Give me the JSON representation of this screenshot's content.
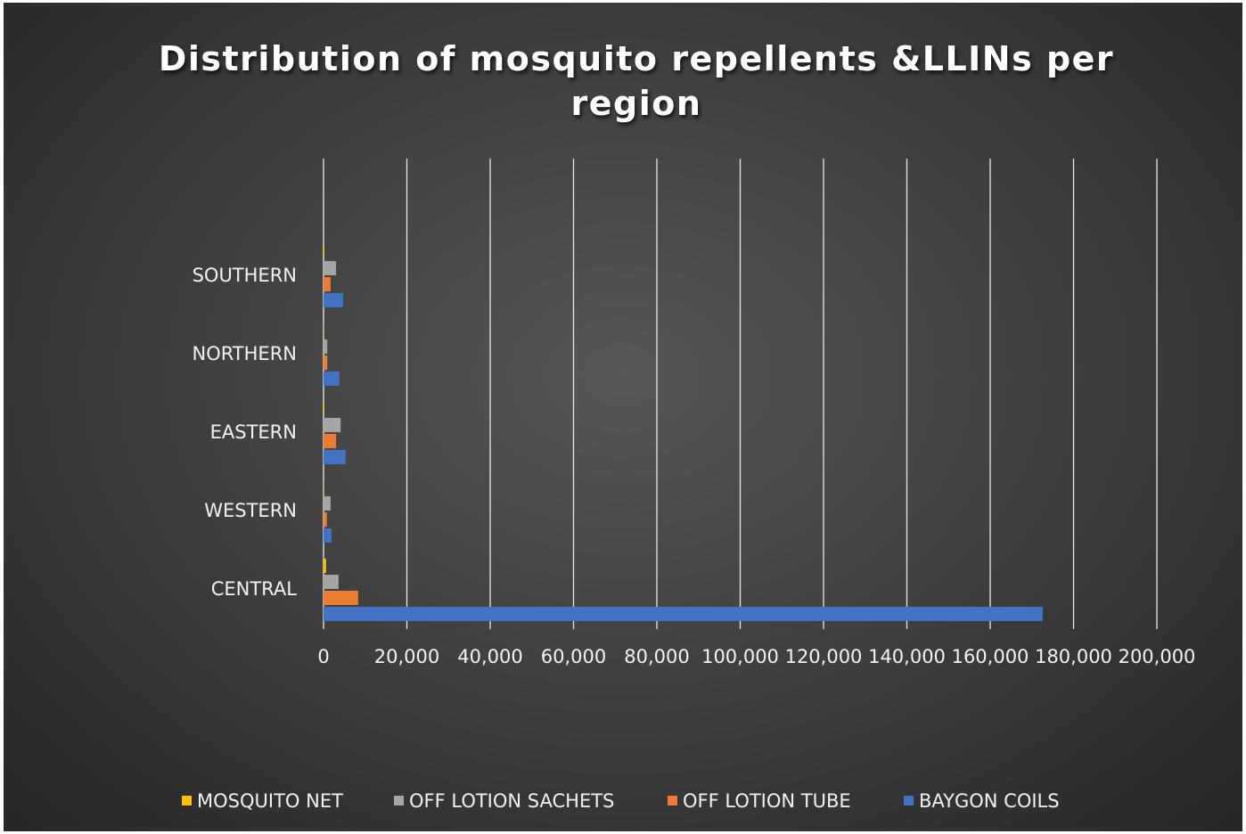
{
  "chart_data": {
    "type": "hbar",
    "title": "Distribution of mosquito repellents &LLINs per region",
    "categories": [
      "CENTRAL",
      "WESTERN",
      "EASTERN",
      "NORTHERN",
      "SOUTHERN",
      null
    ],
    "series": [
      {
        "name": "MOSQUITO NET",
        "color": "#ffc000",
        "values": [
          600,
          100,
          200,
          100,
          200,
          null
        ]
      },
      {
        "name": "OFF LOTION SACHETS",
        "color": "#a5a5a5",
        "values": [
          3600,
          1700,
          4100,
          900,
          3000,
          null
        ]
      },
      {
        "name": "OFF LOTION TUBE",
        "color": "#ed7d31",
        "values": [
          8300,
          800,
          3000,
          900,
          1700,
          null
        ]
      },
      {
        "name": "BAYGON COILS",
        "color": "#4472c4",
        "values": [
          172600,
          1900,
          5300,
          3800,
          4700,
          null
        ]
      }
    ],
    "xlim": [
      0,
      200000
    ],
    "xticks": [
      0,
      {
        "value": 20000,
        "label": "20,000"
      },
      {
        "value": 40000,
        "label": "40,000"
      },
      {
        "value": 60000,
        "label": "60,000"
      },
      {
        "value": 80000,
        "label": "80,000"
      },
      {
        "value": 100000,
        "label": "100,000"
      },
      {
        "value": 120000,
        "label": "120,000"
      },
      {
        "value": 140000,
        "label": "140,000"
      },
      {
        "value": 160000,
        "label": "160,000"
      },
      {
        "value": 180000,
        "label": "180,000"
      },
      {
        "value": 200000,
        "label": "200,000"
      }
    ],
    "grid": true,
    "legend": "bottom"
  }
}
